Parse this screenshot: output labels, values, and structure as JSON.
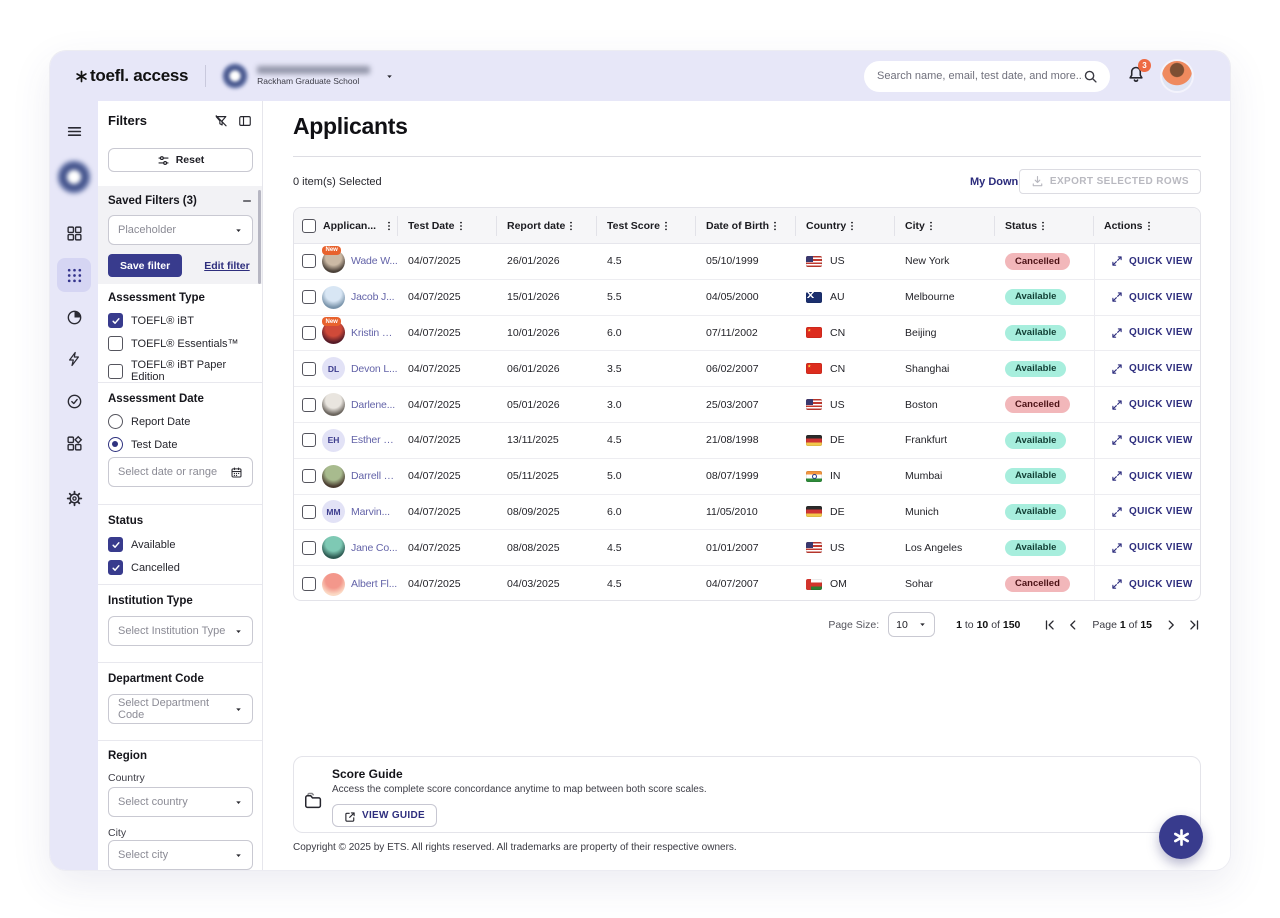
{
  "topbar": {
    "logo_text": "toefl. access",
    "org": {
      "name_redacted": true,
      "subtitle": "Rackham Graduate School"
    },
    "search": {
      "placeholder": "Search name, email, test date, and more..."
    },
    "notifications": {
      "count": "3"
    }
  },
  "rail": {
    "items": [
      {
        "name": "dashboard",
        "icon": "dashboard",
        "active": false
      },
      {
        "name": "applicants",
        "icon": "grid-dots",
        "active": true
      },
      {
        "name": "analytics",
        "icon": "pie",
        "active": false
      },
      {
        "name": "activity",
        "icon": "bolt",
        "active": false
      },
      {
        "name": "verification",
        "icon": "verified",
        "active": false
      },
      {
        "name": "widgets",
        "icon": "widgets",
        "active": false
      },
      {
        "name": "settings",
        "icon": "gear",
        "active": false
      }
    ]
  },
  "filters": {
    "title": "Filters",
    "reset_label": "Reset",
    "saved": {
      "title": "Saved Filters (3)",
      "select_placeholder": "Placeholder",
      "save_label": "Save filter",
      "edit_label": "Edit filter"
    },
    "assessment_type": {
      "label": "Assessment Type",
      "options": [
        {
          "label": "TOEFL® iBT",
          "checked": true
        },
        {
          "label": "TOEFL® Essentials™",
          "checked": false
        },
        {
          "label": "TOEFL® iBT Paper Edition",
          "checked": false
        }
      ]
    },
    "assessment_date": {
      "label": "Assessment Date",
      "options": [
        {
          "label": "Report Date",
          "selected": false
        },
        {
          "label": "Test Date",
          "selected": true
        }
      ],
      "date_placeholder": "Select date or range"
    },
    "status": {
      "label": "Status",
      "options": [
        {
          "label": "Available",
          "checked": true
        },
        {
          "label": "Cancelled",
          "checked": true
        }
      ]
    },
    "institution_type": {
      "label": "Institution Type",
      "placeholder": "Select Institution Type"
    },
    "department_code": {
      "label": "Department Code",
      "placeholder": "Select Department Code"
    },
    "region": {
      "label": "Region",
      "country_label": "Country",
      "country_placeholder": "Select country",
      "city_label": "City",
      "city_placeholder": "Select city"
    }
  },
  "main": {
    "title": "Applicants",
    "selected_text": "0 item(s) Selected",
    "downloads_label": "My Downloads",
    "export_label": "EXPORT SELECTED ROWS",
    "table": {
      "columns": [
        "Applican...",
        "Test Date",
        "Report date",
        "Test Score",
        "Date of Birth",
        "Country",
        "City",
        "Status",
        "Actions"
      ],
      "quick_view_label": "QUICK VIEW",
      "new_badge_label": "New",
      "rows": [
        {
          "name": "Wade W...",
          "new": true,
          "avatar": {
            "type": "photo",
            "g": "#cbb9a4,#4c423a"
          },
          "test_date": "04/07/2025",
          "report_date": "26/01/2026",
          "score": "4.5",
          "dob": "05/10/1999",
          "country": "US",
          "flag": "us",
          "city": "New York",
          "status": "Cancelled"
        },
        {
          "name": "Jacob J...",
          "new": false,
          "avatar": {
            "type": "photo",
            "g": "#d8e6f4,#7a94ab"
          },
          "test_date": "04/07/2025",
          "report_date": "15/01/2026",
          "score": "5.5",
          "dob": "04/05/2000",
          "country": "AU",
          "flag": "au",
          "city": "Melbourne",
          "status": "Available"
        },
        {
          "name": "Kristin W...",
          "new": true,
          "avatar": {
            "type": "photo",
            "g": "#d04a39,#571c28"
          },
          "test_date": "04/07/2025",
          "report_date": "10/01/2026",
          "score": "6.0",
          "dob": "07/11/2002",
          "country": "CN",
          "flag": "cn",
          "city": "Beijing",
          "status": "Available"
        },
        {
          "name": "Devon L...",
          "new": false,
          "avatar": {
            "type": "initials",
            "text": "DL"
          },
          "test_date": "04/07/2025",
          "report_date": "06/01/2026",
          "score": "3.5",
          "dob": "06/02/2007",
          "country": "CN",
          "flag": "cn",
          "city": "Shanghai",
          "status": "Available"
        },
        {
          "name": "Darlene...",
          "new": false,
          "avatar": {
            "type": "photo",
            "g": "#e9e5df,#6b655e"
          },
          "test_date": "04/07/2025",
          "report_date": "05/01/2026",
          "score": "3.0",
          "dob": "25/03/2007",
          "country": "US",
          "flag": "us",
          "city": "Boston",
          "status": "Cancelled"
        },
        {
          "name": "Esther H...",
          "new": false,
          "avatar": {
            "type": "initials",
            "text": "EH"
          },
          "test_date": "04/07/2025",
          "report_date": "13/11/2025",
          "score": "4.5",
          "dob": "21/08/1998",
          "country": "DE",
          "flag": "de",
          "city": "Frankfurt",
          "status": "Available"
        },
        {
          "name": "Darrell S...",
          "new": false,
          "avatar": {
            "type": "photo",
            "g": "#a8bb8e,#4a3c30"
          },
          "test_date": "04/07/2025",
          "report_date": "05/11/2025",
          "score": "5.0",
          "dob": "08/07/1999",
          "country": "IN",
          "flag": "in",
          "city": "Mumbai",
          "status": "Available"
        },
        {
          "name": "Marvin...",
          "new": false,
          "avatar": {
            "type": "initials",
            "text": "MM"
          },
          "test_date": "04/07/2025",
          "report_date": "08/09/2025",
          "score": "6.0",
          "dob": "11/05/2010",
          "country": "DE",
          "flag": "de",
          "city": "Munich",
          "status": "Available"
        },
        {
          "name": "Jane Co...",
          "new": false,
          "avatar": {
            "type": "photo",
            "g": "#7ec9b4,#2d5a52"
          },
          "test_date": "04/07/2025",
          "report_date": "08/08/2025",
          "score": "4.5",
          "dob": "01/01/2007",
          "country": "US",
          "flag": "us",
          "city": "Los Angeles",
          "status": "Available"
        },
        {
          "name": "Albert Fl...",
          "new": false,
          "avatar": {
            "type": "photo",
            "g": "#f3978b,#fbd9c4"
          },
          "test_date": "04/07/2025",
          "report_date": "04/03/2025",
          "score": "4.5",
          "dob": "04/07/2007",
          "country": "OM",
          "flag": "om",
          "city": "Sohar",
          "status": "Cancelled"
        }
      ]
    },
    "pagination": {
      "page_size_label": "Page Size:",
      "page_size": "10",
      "range": {
        "from": "1",
        "to_word": "to",
        "to": "10",
        "of_word": "of",
        "total": "150"
      },
      "page": {
        "word": "Page",
        "num": "1",
        "of_word": "of",
        "total": "15"
      }
    },
    "score_guide": {
      "title": "Score Guide",
      "description": "Access the complete score concordance anytime to map between both score scales.",
      "button": "VIEW GUIDE"
    },
    "copyright": "Copyright © 2025 by ETS. All rights reserved. All trademarks are property of their respective owners."
  },
  "colors": {
    "topbar_bg": "#e7e7f8",
    "primary": "#383b8d",
    "available_bg": "#a7eedd",
    "cancelled_bg": "#f2b7ba",
    "new_badge": "#e8622d"
  }
}
